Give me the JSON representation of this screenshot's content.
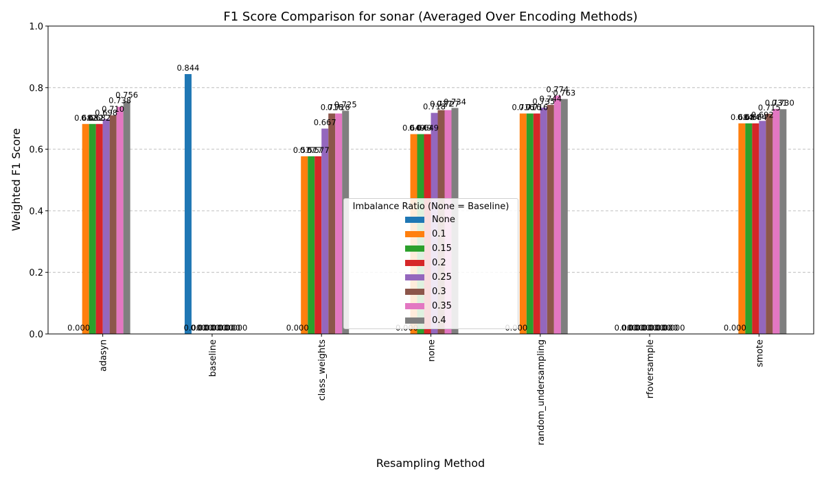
{
  "chart_data": {
    "type": "bar",
    "title": "F1 Score Comparison for sonar (Averaged Over Encoding Methods)",
    "xlabel": "Resampling Method",
    "ylabel": "Weighted F1 Score",
    "ylim": [
      0,
      1
    ],
    "yticks": [
      "0.0",
      "0.2",
      "0.4",
      "0.6",
      "0.8",
      "1.0"
    ],
    "grid": "horizontal dashed",
    "legend_title": "Imbalance Ratio (None = Baseline)",
    "legend_position": "center",
    "categories": [
      "adasyn",
      "baseline",
      "class_weights",
      "none",
      "random_undersampling",
      "rfoversample",
      "smote"
    ],
    "series": [
      {
        "name": "None",
        "color": "#1f77b4",
        "values": [
          0.0,
          0.844,
          0.0,
          0.0,
          0.0,
          0.0,
          0.0
        ]
      },
      {
        "name": "0.1",
        "color": "#ff7f0e",
        "values": [
          0.682,
          0.0,
          0.577,
          0.649,
          0.716,
          0.0,
          0.684
        ]
      },
      {
        "name": "0.15",
        "color": "#2ca02c",
        "values": [
          0.682,
          0.0,
          0.577,
          0.649,
          0.716,
          0.0,
          0.684
        ]
      },
      {
        "name": "0.2",
        "color": "#d62728",
        "values": [
          0.682,
          0.0,
          0.577,
          0.649,
          0.716,
          0.0,
          0.684
        ]
      },
      {
        "name": "0.25",
        "color": "#9467bd",
        "values": [
          0.698,
          0.0,
          0.667,
          0.718,
          0.735,
          0.0,
          0.692
        ]
      },
      {
        "name": "0.3",
        "color": "#8c564b",
        "values": [
          0.71,
          0.0,
          0.716,
          0.727,
          0.744,
          0.0,
          0.715
        ]
      },
      {
        "name": "0.35",
        "color": "#e377c2",
        "values": [
          0.738,
          0.0,
          0.716,
          0.727,
          0.774,
          0.0,
          0.731
        ]
      },
      {
        "name": "0.4",
        "color": "#7f7f7f",
        "values": [
          0.756,
          0.0,
          0.725,
          0.734,
          0.763,
          0.0,
          0.73
        ]
      }
    ]
  }
}
